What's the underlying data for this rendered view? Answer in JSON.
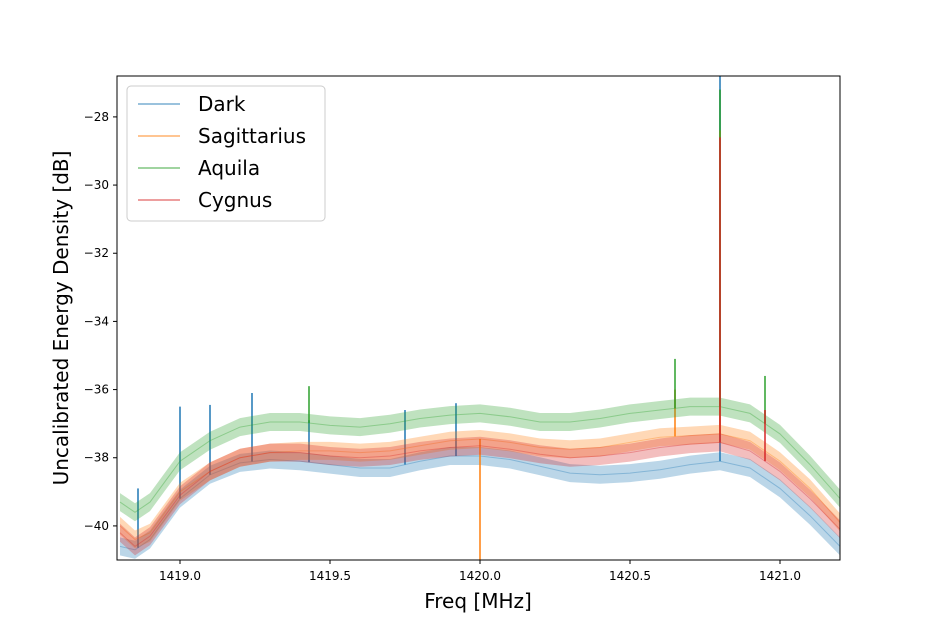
{
  "chart_data": {
    "type": "line",
    "xlabel": "Freq [MHz]",
    "ylabel": "Uncalibrated Energy Density [dB]",
    "xlim": [
      1418.79,
      1421.2
    ],
    "ylim": [
      -41.0,
      -26.8
    ],
    "xticks": [
      1419.0,
      1419.5,
      1420.0,
      1420.5,
      1421.0
    ],
    "xtick_labels": [
      "1419.0",
      "1419.5",
      "1420.0",
      "1420.5",
      "1421.0"
    ],
    "yticks": [
      -40,
      -38,
      -36,
      -34,
      -32,
      -30,
      -28
    ],
    "ytick_labels": [
      "−40",
      "−38",
      "−36",
      "−34",
      "−32",
      "−30",
      "−28"
    ],
    "grid": false,
    "legend_position": "top-left",
    "x": [
      1418.8,
      1418.85,
      1418.9,
      1418.95,
      1419.0,
      1419.1,
      1419.2,
      1419.3,
      1419.4,
      1419.5,
      1419.6,
      1419.7,
      1419.8,
      1419.9,
      1420.0,
      1420.1,
      1420.2,
      1420.3,
      1420.4,
      1420.5,
      1420.6,
      1420.7,
      1420.8,
      1420.9,
      1421.0,
      1421.1,
      1421.2
    ],
    "series": [
      {
        "name": "Dark",
        "color": "#1f77b4",
        "values": [
          -40.6,
          -40.7,
          -40.4,
          -39.8,
          -39.2,
          -38.5,
          -38.15,
          -38.05,
          -38.1,
          -38.2,
          -38.3,
          -38.3,
          -38.1,
          -37.95,
          -37.95,
          -38.05,
          -38.25,
          -38.45,
          -38.5,
          -38.45,
          -38.35,
          -38.2,
          -38.1,
          -38.3,
          -38.9,
          -39.7,
          -40.6
        ],
        "spikes": [
          {
            "x": 1418.86,
            "y": -38.9
          },
          {
            "x": 1419.0,
            "y": -36.5
          },
          {
            "x": 1419.1,
            "y": -36.45
          },
          {
            "x": 1419.24,
            "y": -36.1
          },
          {
            "x": 1419.43,
            "y": -36.9
          },
          {
            "x": 1419.75,
            "y": -36.6
          },
          {
            "x": 1419.92,
            "y": -36.4
          },
          {
            "x": 1420.8,
            "y": -26.8
          }
        ]
      },
      {
        "name": "Sagittarius",
        "color": "#ff7f0e",
        "values": [
          -40.0,
          -40.4,
          -40.2,
          -39.6,
          -39.0,
          -38.4,
          -38.0,
          -37.85,
          -37.8,
          -37.8,
          -37.85,
          -37.8,
          -37.65,
          -37.5,
          -37.45,
          -37.55,
          -37.7,
          -37.75,
          -37.7,
          -37.55,
          -37.4,
          -37.35,
          -37.3,
          -37.5,
          -38.1,
          -38.9,
          -39.9
        ],
        "spikes": [
          {
            "x": 1420.0,
            "y": -41.0
          },
          {
            "x": 1420.65,
            "y": -36.0
          },
          {
            "x": 1420.8,
            "y": -28.4
          }
        ]
      },
      {
        "name": "Aquila",
        "color": "#2ca02c",
        "values": [
          -39.3,
          -39.6,
          -39.3,
          -38.7,
          -38.1,
          -37.5,
          -37.1,
          -36.95,
          -36.95,
          -37.05,
          -37.1,
          -37.0,
          -36.85,
          -36.75,
          -36.7,
          -36.8,
          -36.95,
          -36.95,
          -36.85,
          -36.7,
          -36.6,
          -36.5,
          -36.5,
          -36.7,
          -37.3,
          -38.2,
          -39.2
        ],
        "spikes": [
          {
            "x": 1419.43,
            "y": -35.9
          },
          {
            "x": 1420.65,
            "y": -35.1
          },
          {
            "x": 1420.8,
            "y": -27.2
          },
          {
            "x": 1420.95,
            "y": -35.6
          }
        ]
      },
      {
        "name": "Cygnus",
        "color": "#d62728",
        "values": [
          -40.2,
          -40.6,
          -40.3,
          -39.7,
          -39.1,
          -38.4,
          -38.0,
          -37.85,
          -37.85,
          -37.95,
          -38.0,
          -37.95,
          -37.8,
          -37.7,
          -37.65,
          -37.75,
          -37.9,
          -38.0,
          -37.95,
          -37.85,
          -37.7,
          -37.6,
          -37.55,
          -37.8,
          -38.4,
          -39.2,
          -40.1
        ],
        "spikes": [
          {
            "x": 1420.8,
            "y": -28.6
          },
          {
            "x": 1420.95,
            "y": -36.6
          }
        ]
      }
    ]
  }
}
